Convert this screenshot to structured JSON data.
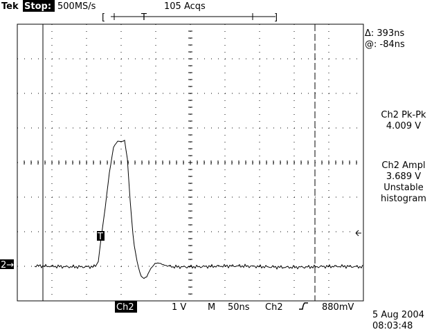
{
  "header": {
    "brand": "Tek",
    "status": "Stop:",
    "sample_rate": "500MS/s",
    "acquisitions": "105 Acqs"
  },
  "trigger_bar": {
    "left": "[",
    "marker": "T",
    "right": "]"
  },
  "cursors": {
    "delta": "Δ: 393ns",
    "at": "@: -84ns"
  },
  "measurements": [
    {
      "label": "Ch2 Pk-Pk",
      "value": "4.009 V"
    },
    {
      "label": "Ch2 Ampl",
      "value": "3.689 V",
      "status": "Unstable",
      "note": "histogram"
    }
  ],
  "markers": {
    "channel": "2→",
    "trigger": "T"
  },
  "footer": {
    "channel": "Ch2",
    "scale": "1 V",
    "mode": "M",
    "timebase": "50ns",
    "trigger_source": "Ch2",
    "trigger_level": "880mV",
    "date": "5 Aug 2004",
    "time": "08:03:48"
  }
}
